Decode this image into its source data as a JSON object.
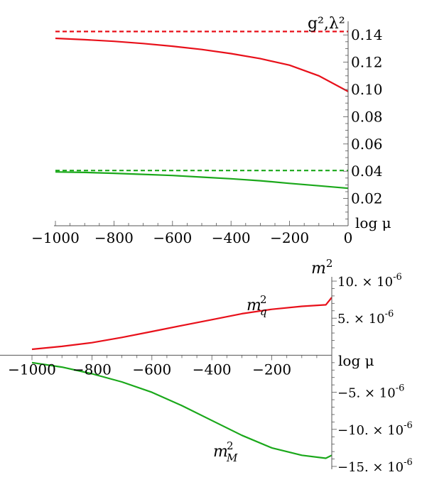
{
  "chart_data": [
    {
      "type": "line",
      "ylabel": "g²,λ²",
      "xlabel": "log μ",
      "xlim": [
        -1000,
        0
      ],
      "ylim": [
        0.0,
        0.15
      ],
      "x_ticks": [
        -1000,
        -800,
        -600,
        -400,
        -200,
        0
      ],
      "x_tick_labels": [
        "−1000",
        "−800",
        "−600",
        "−400",
        "−200",
        "0"
      ],
      "y_ticks": [
        0.02,
        0.04,
        0.06,
        0.08,
        0.1,
        0.12,
        0.14
      ],
      "y_tick_labels": [
        "0.02",
        "0.04",
        "0.06",
        "0.08",
        "0.10",
        "0.12",
        "0.14"
      ],
      "grid": false,
      "series": [
        {
          "color": "#e8101a",
          "dashed": true,
          "x": [
            -1000,
            0
          ],
          "values": [
            0.1425,
            0.1425
          ]
        },
        {
          "color": "#e8101a",
          "dashed": false,
          "x": [
            -1000,
            -900,
            -800,
            -700,
            -600,
            -500,
            -400,
            -300,
            -200,
            -100,
            0
          ],
          "values": [
            0.1375,
            0.1365,
            0.1353,
            0.1337,
            0.1317,
            0.1293,
            0.1263,
            0.1226,
            0.1178,
            0.11,
            0.0985
          ]
        },
        {
          "color": "#1aa81a",
          "dashed": true,
          "x": [
            -1000,
            0
          ],
          "values": [
            0.0405,
            0.0405
          ]
        },
        {
          "color": "#1aa81a",
          "dashed": false,
          "x": [
            -1000,
            -900,
            -800,
            -700,
            -600,
            -500,
            -400,
            -300,
            -200,
            -100,
            0
          ],
          "values": [
            0.0395,
            0.0391,
            0.0385,
            0.0377,
            0.0369,
            0.0357,
            0.0345,
            0.033,
            0.0311,
            0.0293,
            0.0275
          ]
        }
      ]
    },
    {
      "type": "line",
      "ylabel": "m²",
      "xlabel": "log μ",
      "xlim": [
        -1000,
        0
      ],
      "ylim": [
        -1.5e-05,
        1e-05
      ],
      "x_ticks": [
        -1000,
        -800,
        -600,
        -400,
        -200
      ],
      "x_tick_labels": [
        "−1000",
        "−800",
        "−600",
        "−400",
        "−200"
      ],
      "y_ticks": [
        1e-05,
        5e-06,
        -5e-06,
        -1e-05,
        -1.5e-05
      ],
      "y_tick_labels": [
        {
          "mant": "10. × 10",
          "exp": "-6"
        },
        {
          "mant": "5. × 10",
          "exp": "-6"
        },
        {
          "mant": "−5. × 10",
          "exp": "-6"
        },
        {
          "mant": "−10. × 10",
          "exp": "-6"
        },
        {
          "mant": "−15. × 10",
          "exp": "-6"
        }
      ],
      "grid": false,
      "series": [
        {
          "name_base": "m",
          "name_sup": "2",
          "name_sub": "q",
          "color": "#e8101a",
          "x": [
            -1000,
            -900,
            -800,
            -700,
            -600,
            -500,
            -400,
            -300,
            -200,
            -100,
            -20,
            0
          ],
          "values": [
            8e-07,
            1.2e-06,
            1.7e-06,
            2.4e-06,
            3.2e-06,
            4e-06,
            4.8e-06,
            5.6e-06,
            6.2e-06,
            6.6e-06,
            6.8e-06,
            7.8e-06
          ]
        },
        {
          "name_base": "m",
          "name_sup": "2",
          "name_sub": "M",
          "color": "#1aa81a",
          "x": [
            -1000,
            -900,
            -800,
            -700,
            -600,
            -500,
            -400,
            -300,
            -200,
            -100,
            -20,
            0
          ],
          "values": [
            -1e-06,
            -1.6e-06,
            -2.5e-06,
            -3.6e-06,
            -5e-06,
            -6.8e-06,
            -8.8e-06,
            -1.08e-05,
            -1.25e-05,
            -1.35e-05,
            -1.39e-05,
            -1.35e-05
          ]
        }
      ]
    }
  ]
}
